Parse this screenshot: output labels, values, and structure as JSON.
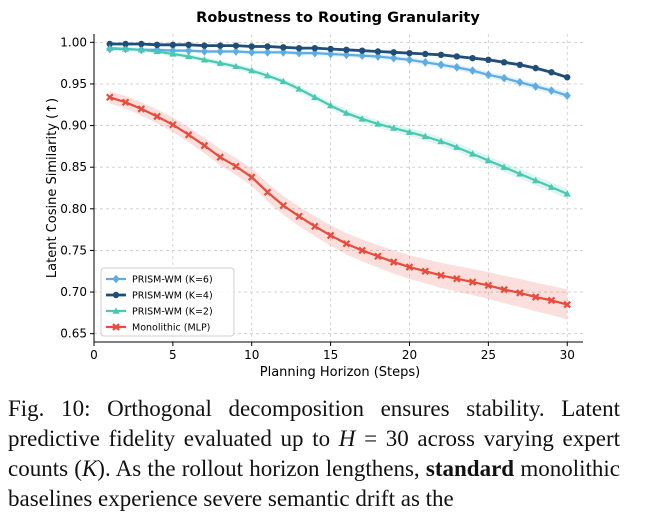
{
  "chart_data": {
    "type": "line",
    "title": "Robustness to Routing Granularity",
    "xlabel": "Planning Horizon (Steps)",
    "ylabel": "Latent Cosine Similarity (↑)",
    "xlim": [
      0,
      31
    ],
    "ylim": [
      0.64,
      1.01
    ],
    "xticks": [
      0,
      5,
      10,
      15,
      20,
      25,
      30
    ],
    "yticks": [
      0.65,
      0.7,
      0.75,
      0.8,
      0.85,
      0.9,
      0.95,
      1.0
    ],
    "grid": true,
    "legend_position": "lower-left",
    "x": [
      1,
      2,
      3,
      4,
      5,
      6,
      7,
      8,
      9,
      10,
      11,
      12,
      13,
      14,
      15,
      16,
      17,
      18,
      19,
      20,
      21,
      22,
      23,
      24,
      25,
      26,
      27,
      28,
      29,
      30
    ],
    "series": [
      {
        "name": "PRISM-WM (K=6)",
        "color": "#5dade2",
        "marker": "diamond",
        "values": [
          0.992,
          0.992,
          0.991,
          0.991,
          0.99,
          0.99,
          0.989,
          0.989,
          0.989,
          0.988,
          0.988,
          0.988,
          0.987,
          0.987,
          0.986,
          0.985,
          0.984,
          0.983,
          0.981,
          0.979,
          0.976,
          0.973,
          0.97,
          0.966,
          0.961,
          0.957,
          0.952,
          0.947,
          0.942,
          0.936
        ],
        "band": 0.004
      },
      {
        "name": "PRISM-WM (K=4)",
        "color": "#1f4e79",
        "marker": "circle",
        "values": [
          0.998,
          0.998,
          0.998,
          0.997,
          0.997,
          0.997,
          0.996,
          0.996,
          0.996,
          0.995,
          0.995,
          0.994,
          0.993,
          0.993,
          0.992,
          0.991,
          0.99,
          0.989,
          0.988,
          0.987,
          0.986,
          0.985,
          0.983,
          0.981,
          0.979,
          0.976,
          0.973,
          0.969,
          0.964,
          0.958
        ],
        "band": 0.002
      },
      {
        "name": "PRISM-WM (K=2)",
        "color": "#48c9b0",
        "marker": "triangle",
        "values": [
          0.993,
          0.992,
          0.991,
          0.989,
          0.986,
          0.983,
          0.979,
          0.975,
          0.971,
          0.966,
          0.96,
          0.953,
          0.944,
          0.934,
          0.924,
          0.915,
          0.908,
          0.902,
          0.897,
          0.892,
          0.887,
          0.881,
          0.874,
          0.866,
          0.858,
          0.85,
          0.842,
          0.834,
          0.826,
          0.818
        ],
        "band": 0.006
      },
      {
        "name": "Monolithic (MLP)",
        "color": "#e74c3c",
        "marker": "x",
        "values": [
          0.934,
          0.928,
          0.92,
          0.911,
          0.901,
          0.889,
          0.876,
          0.862,
          0.851,
          0.838,
          0.82,
          0.804,
          0.791,
          0.779,
          0.768,
          0.758,
          0.75,
          0.743,
          0.736,
          0.73,
          0.725,
          0.72,
          0.716,
          0.712,
          0.708,
          0.703,
          0.699,
          0.694,
          0.69,
          0.685
        ],
        "band": 0.018
      }
    ]
  },
  "caption": {
    "part1": "Fig. 10: Orthogonal decomposition ensures stability. Latent predictive fidelity evaluated up to ",
    "math1": "H",
    "part2": " = 30 across varying expert counts (",
    "math2": "K",
    "part3": "). As the rollout horizon lengthens, ",
    "bold1": "standard",
    "part4": " monolithic baselines experience severe semantic drift as the"
  }
}
